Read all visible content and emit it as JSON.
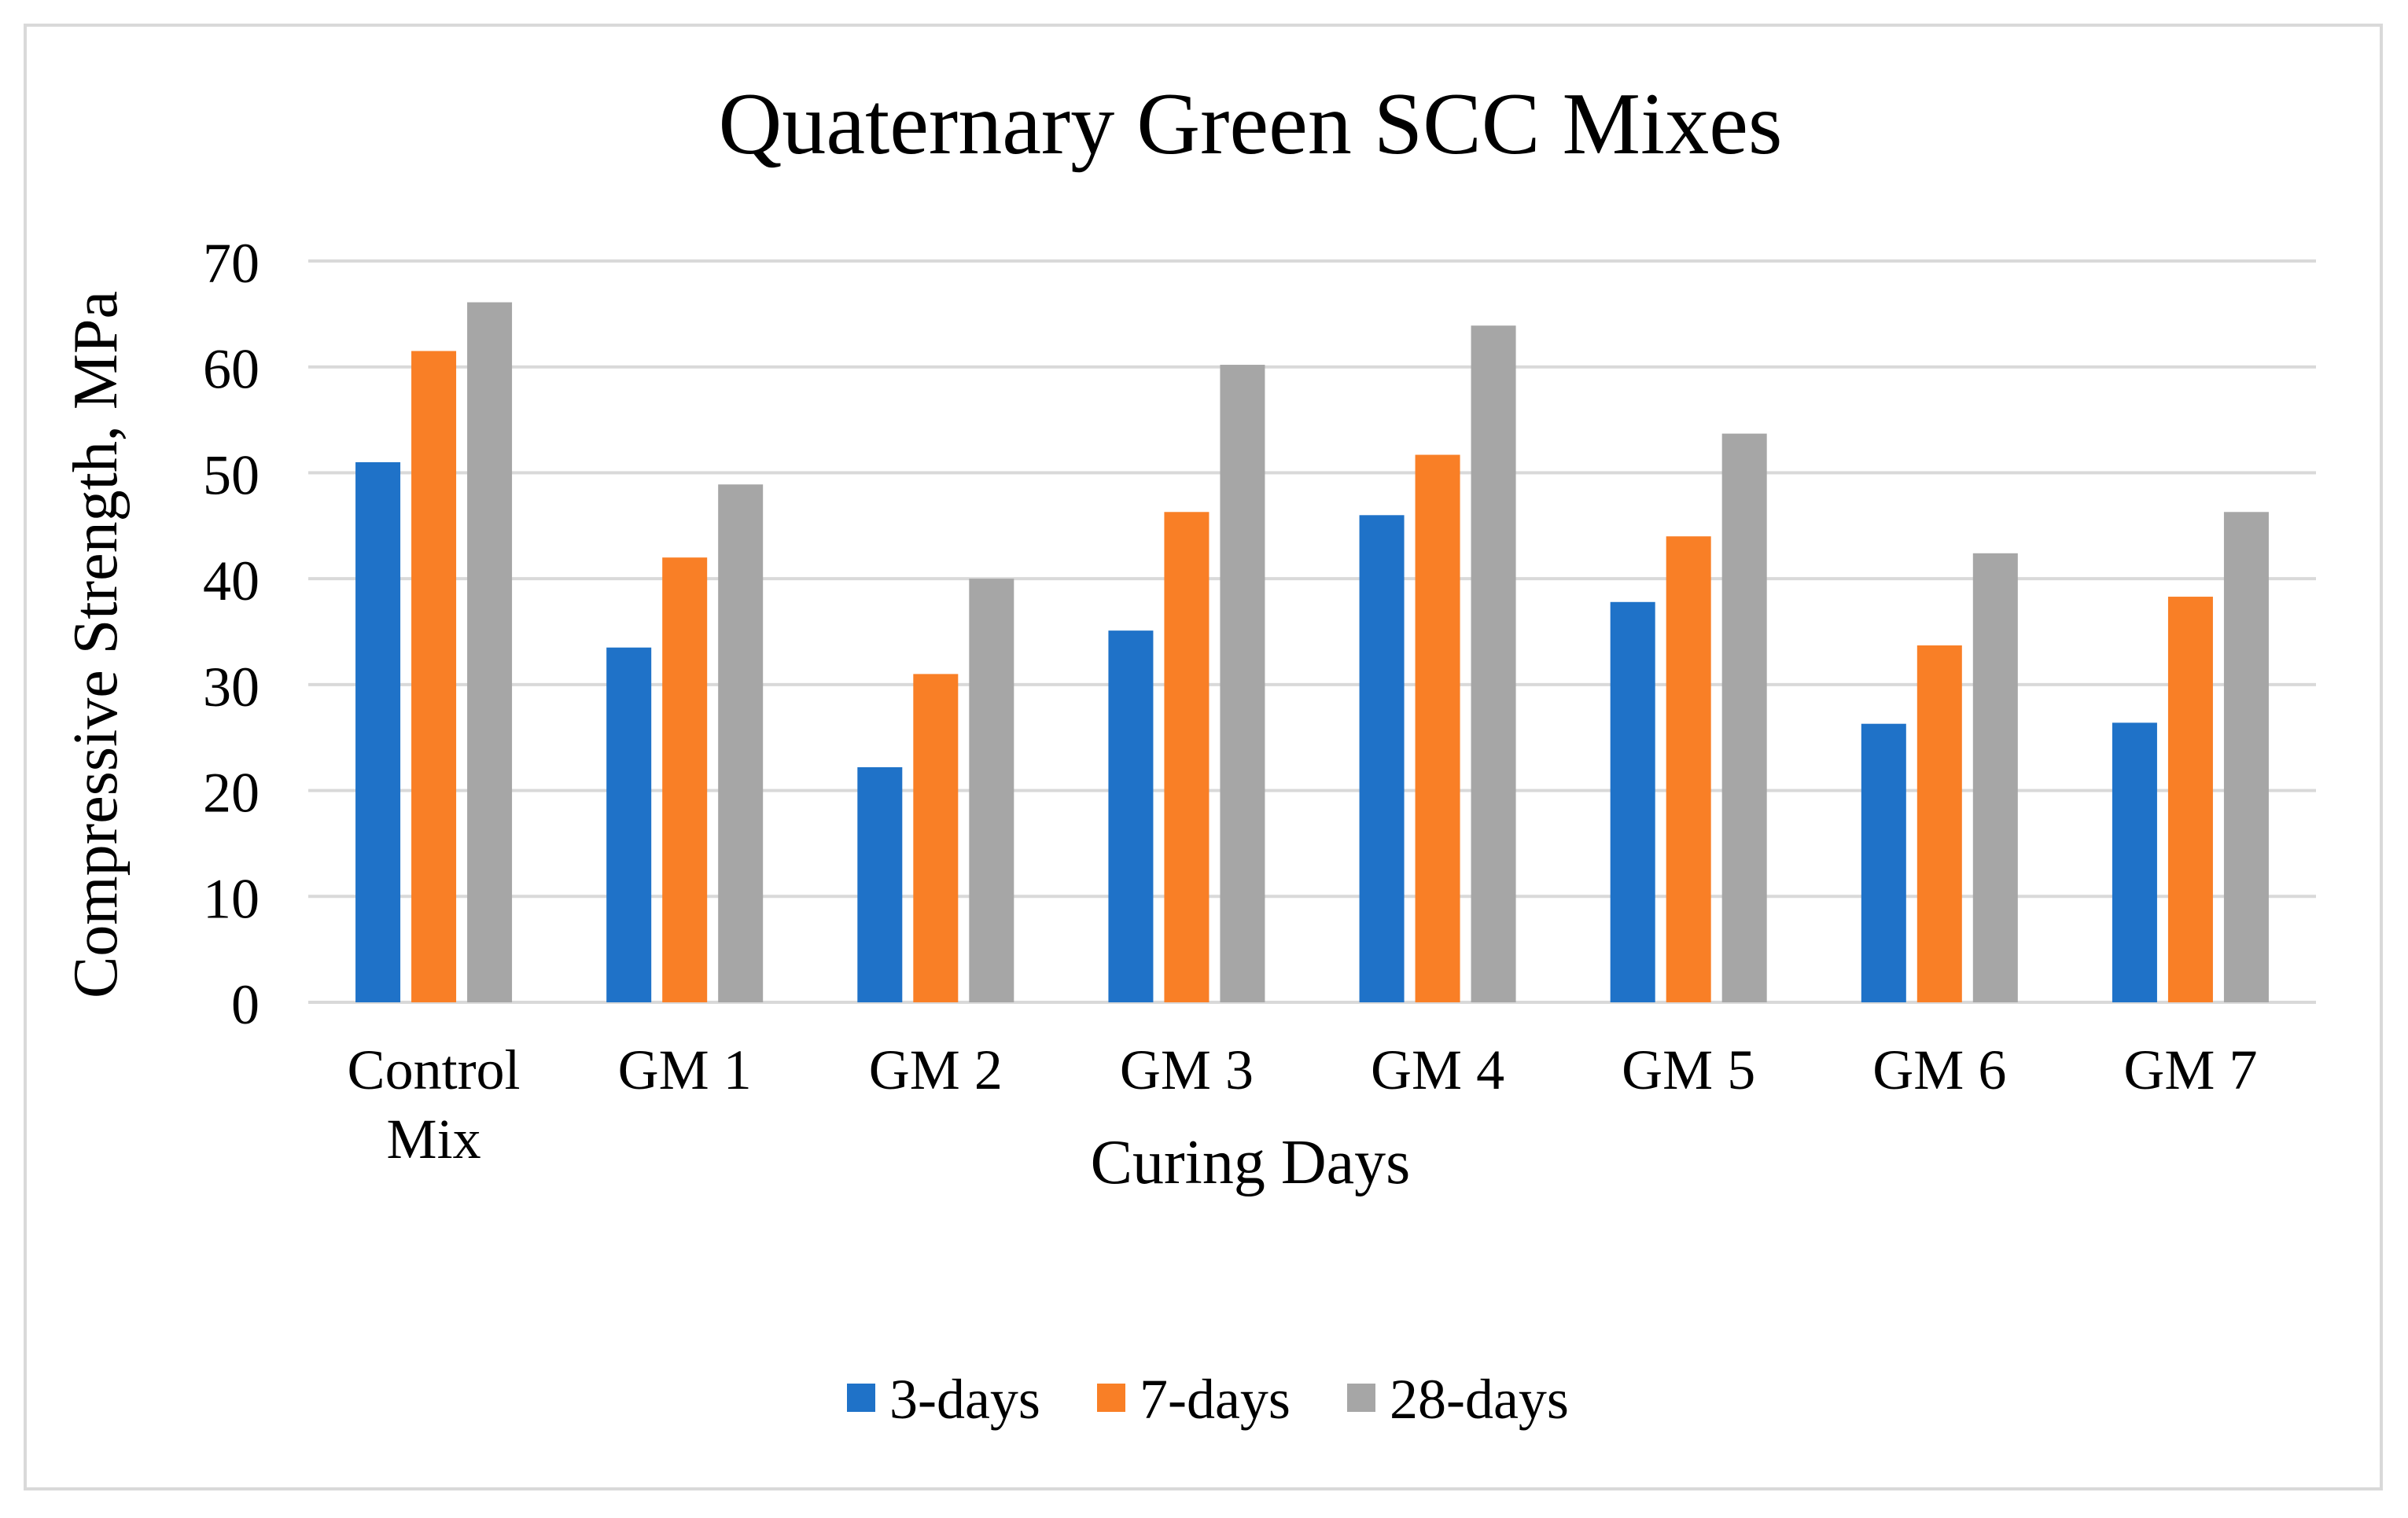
{
  "chart_data": {
    "type": "bar",
    "title": "Quaternary Green SCC Mixes",
    "xlabel": "Curing Days",
    "ylabel": "Compressive Strength, MPa",
    "ylim": [
      0,
      70
    ],
    "yticks": [
      0,
      10,
      20,
      30,
      40,
      50,
      60,
      70
    ],
    "grid": true,
    "legend_position": "bottom",
    "categories": [
      [
        "Control",
        "Mix"
      ],
      [
        "GM 1"
      ],
      [
        "GM 2"
      ],
      [
        "GM 3"
      ],
      [
        "GM 4"
      ],
      [
        "GM 5"
      ],
      [
        "GM 6"
      ],
      [
        "GM 7"
      ]
    ],
    "series": [
      {
        "name": "3-days",
        "color": "#1f72c8",
        "values": [
          51.0,
          33.5,
          22.2,
          35.1,
          46.0,
          37.8,
          26.3,
          26.4
        ]
      },
      {
        "name": "7-days",
        "color": "#f97f26",
        "values": [
          61.5,
          42.0,
          31.0,
          46.3,
          51.7,
          44.0,
          33.7,
          38.3
        ]
      },
      {
        "name": "28-days",
        "color": "#a6a6a6",
        "values": [
          66.1,
          48.9,
          40.0,
          60.2,
          63.9,
          53.7,
          42.4,
          46.3
        ]
      }
    ]
  }
}
